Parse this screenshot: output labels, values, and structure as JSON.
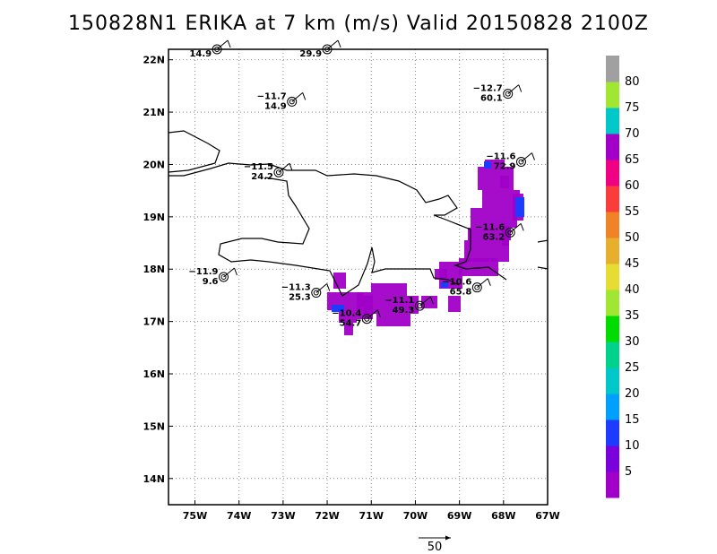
{
  "title": "150828N1 ERIKA at 7 km (m/s) Valid 20150828 2100Z",
  "map": {
    "lon_range": [
      -75.6,
      -67
    ],
    "lat_range": [
      13.5,
      22.2
    ],
    "lat_ticks": [
      {
        "v": 14,
        "label": "14N"
      },
      {
        "v": 15,
        "label": "15N"
      },
      {
        "v": 16,
        "label": "16N"
      },
      {
        "v": 17,
        "label": "17N"
      },
      {
        "v": 18,
        "label": "18N"
      },
      {
        "v": 19,
        "label": "19N"
      },
      {
        "v": 20,
        "label": "20N"
      },
      {
        "v": 21,
        "label": "21N"
      },
      {
        "v": 22,
        "label": "22N"
      }
    ],
    "lon_ticks": [
      {
        "v": -75,
        "label": "75W"
      },
      {
        "v": -74,
        "label": "74W"
      },
      {
        "v": -73,
        "label": "73W"
      },
      {
        "v": -72,
        "label": "72W"
      },
      {
        "v": -71,
        "label": "71W"
      },
      {
        "v": -70,
        "label": "70W"
      },
      {
        "v": -69,
        "label": "69W"
      },
      {
        "v": -68,
        "label": "68W"
      },
      {
        "v": -67,
        "label": "67W"
      }
    ],
    "grid": true
  },
  "observations": [
    {
      "lon": -74.5,
      "lat": 22.2,
      "top": "",
      "bottom": "14.9"
    },
    {
      "lon": -72.0,
      "lat": 22.2,
      "top": "",
      "bottom": "29.9"
    },
    {
      "lon": -72.8,
      "lat": 21.2,
      "top": "−11.7",
      "bottom": "14.9"
    },
    {
      "lon": -67.9,
      "lat": 21.35,
      "top": "−12.7",
      "bottom": "60.1"
    },
    {
      "lon": -73.1,
      "lat": 19.85,
      "top": "−11.5",
      "bottom": "24.2"
    },
    {
      "lon": -67.6,
      "lat": 20.05,
      "top": "−11.6",
      "bottom": "72.9"
    },
    {
      "lon": -67.85,
      "lat": 18.7,
      "top": "−11.6",
      "bottom": "63.2"
    },
    {
      "lon": -74.35,
      "lat": 17.85,
      "top": "−11.9",
      "bottom": "9.6"
    },
    {
      "lon": -72.25,
      "lat": 17.55,
      "top": "−11.3",
      "bottom": "25.3"
    },
    {
      "lon": -68.6,
      "lat": 17.65,
      "top": "−10.6",
      "bottom": "65.8"
    },
    {
      "lon": -69.9,
      "lat": 17.3,
      "top": "−11.1",
      "bottom": "49.3"
    },
    {
      "lon": -71.1,
      "lat": 17.05,
      "top": "−10.4",
      "bottom": "54.7"
    }
  ],
  "colorbar": {
    "labels": [
      "5",
      "10",
      "15",
      "20",
      "25",
      "30",
      "35",
      "40",
      "45",
      "50",
      "55",
      "60",
      "65",
      "70",
      "75",
      "80"
    ],
    "colors": [
      "#a000c8",
      "#7a00dc",
      "#1e3cff",
      "#00a0ff",
      "#00c8c8",
      "#00d28c",
      "#00dc00",
      "#a0e632",
      "#e6dc32",
      "#e6af2d",
      "#f08228",
      "#fa3c3c",
      "#f00082",
      "#a000c8",
      "#00c8c8",
      "#a0e632",
      "#a0a0a0"
    ]
  },
  "reference_vector": {
    "label": "50"
  }
}
